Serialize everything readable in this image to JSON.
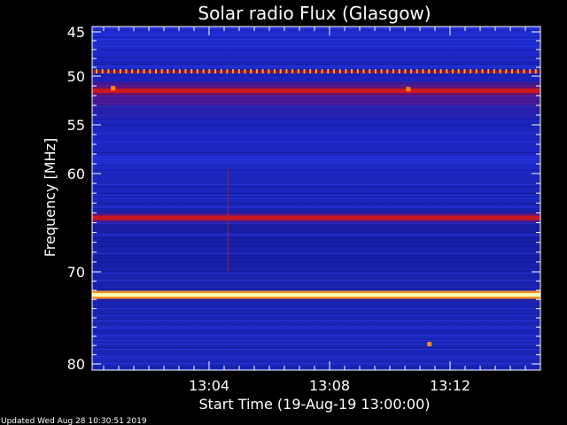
{
  "chart_data": {
    "type": "heatmap",
    "title": "Solar radio Flux (Glasgow)",
    "ylabel": "Frequency [MHz]",
    "xlabel": "Start Time (19-Aug-19 13:00:00)",
    "y_ticks": [
      45,
      50,
      55,
      60,
      70,
      80
    ],
    "y_tick_labels": [
      "45",
      "50",
      "55",
      "60",
      "70",
      "80"
    ],
    "x_ticks": [
      4,
      8,
      12
    ],
    "x_tick_labels": [
      "13:04",
      "13:08",
      "13:12"
    ],
    "xlim": [
      0,
      15
    ],
    "ylim_note": "nonlinear axis: 45 at top, 80 at bottom",
    "ylim": [
      45,
      80
    ],
    "colorscale": [
      "#1418a0",
      "#2a3ae6",
      "#8a1060",
      "#d01818",
      "#ff8800",
      "#ffffb0"
    ],
    "features": {
      "background_level": "blue",
      "bands": [
        {
          "freq": 49.5,
          "intensity": "dotted orange line"
        },
        {
          "freq": 51.5,
          "intensity": "red band"
        },
        {
          "freq": 64.5,
          "intensity": "red band"
        },
        {
          "freq": 72.5,
          "intensity": "bright yellow band"
        }
      ],
      "spots": [
        {
          "time_min": 0.8,
          "freq": 51.2
        },
        {
          "time_min": 10.6,
          "freq": 51.3
        },
        {
          "time_min": 11.3,
          "freq": 77.8
        }
      ]
    }
  },
  "footer": {
    "updated": "Updated Wed Aug 28 10:30:51 2019"
  }
}
